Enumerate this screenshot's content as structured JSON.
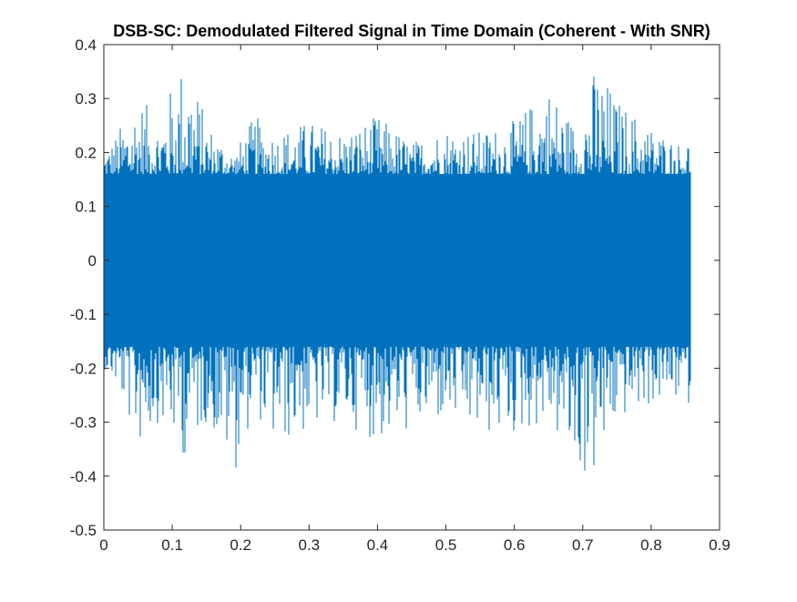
{
  "chart_data": {
    "type": "line",
    "title": "DSB-SC: Demodulated Filtered Signal in Time Domain (Coherent - With SNR)",
    "xlabel": "",
    "ylabel": "",
    "xlim": [
      0,
      0.9
    ],
    "ylim": [
      -0.5,
      0.4
    ],
    "xticks": [
      0,
      0.1,
      0.2,
      0.3,
      0.4,
      0.5,
      0.6,
      0.7,
      0.8,
      0.9
    ],
    "yticks": [
      -0.5,
      -0.4,
      -0.3,
      -0.2,
      -0.1,
      0,
      0.1,
      0.2,
      0.3,
      0.4
    ],
    "xtick_labels": [
      "0",
      "0.1",
      "0.2",
      "0.3",
      "0.4",
      "0.5",
      "0.6",
      "0.7",
      "0.8",
      "0.9"
    ],
    "ytick_labels": [
      "-0.5",
      "-0.4",
      "-0.3",
      "-0.2",
      "-0.1",
      "0",
      "0.1",
      "0.2",
      "0.3",
      "0.4"
    ],
    "grid": false,
    "legend": "none",
    "series": [
      {
        "color": "#0072BD",
        "x_range": [
          0,
          0.857
        ],
        "envelope": {
          "t": [
            0.0,
            0.02,
            0.05,
            0.08,
            0.1,
            0.12,
            0.15,
            0.19,
            0.22,
            0.25,
            0.3,
            0.35,
            0.4,
            0.45,
            0.5,
            0.55,
            0.6,
            0.65,
            0.69,
            0.72,
            0.75,
            0.8,
            0.84,
            0.857
          ],
          "upper": [
            0.2,
            0.24,
            0.31,
            0.26,
            0.33,
            0.39,
            0.26,
            0.2,
            0.27,
            0.24,
            0.26,
            0.24,
            0.27,
            0.22,
            0.25,
            0.24,
            0.26,
            0.33,
            0.25,
            0.37,
            0.3,
            0.25,
            0.22,
            0.23
          ],
          "lower": [
            -0.2,
            -0.24,
            -0.35,
            -0.3,
            -0.34,
            -0.37,
            -0.3,
            -0.4,
            -0.28,
            -0.35,
            -0.32,
            -0.3,
            -0.34,
            -0.32,
            -0.3,
            -0.33,
            -0.33,
            -0.3,
            -0.41,
            -0.41,
            -0.3,
            -0.27,
            -0.26,
            -0.27
          ],
          "band": 0.16
        }
      }
    ]
  }
}
